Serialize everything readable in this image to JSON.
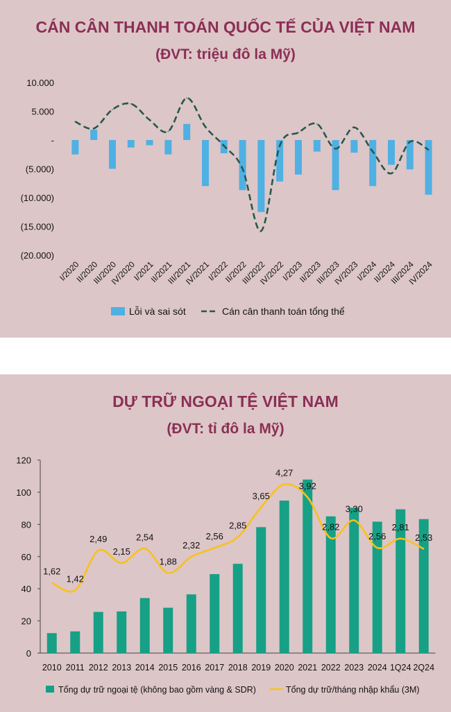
{
  "charts": {
    "bop": {
      "title": "CÁN CÂN THANH TOÁN QUỐC TẾ CỦA VIỆT NAM",
      "subtitle": "(ĐVT: triệu đô la Mỹ)"
    },
    "reserves": {
      "title": "DỰ TRỮ NGOẠI TỆ VIỆT NAM",
      "subtitle": "(ĐVT: tỉ đô la Mỹ)"
    }
  },
  "colors": {
    "panel_bg": "#ddc6c8",
    "title": "#8b2f55",
    "bar_blue": "#4fb0e3",
    "line_dark": "#24594c",
    "bar_green": "#16a085",
    "line_yellow": "#f7c21c"
  },
  "chart_data": [
    {
      "type": "bar",
      "categories": [
        "I/2020",
        "II/2020",
        "III/2020",
        "IV/2020",
        "I/2021",
        "II/2021",
        "III/2021",
        "IV/2021",
        "I/2022",
        "II/2022",
        "III/2022",
        "IV/2022",
        "I/2023",
        "II/2023",
        "III/2023",
        "IV/2023",
        "I/2024",
        "II/2024",
        "III/2024",
        "IV/2024"
      ],
      "ylim": [
        -20000,
        10000
      ],
      "yticks": [
        10000,
        5000,
        0,
        -5000,
        -10000,
        -15000,
        -20000
      ],
      "ytick_labels": [
        "10.000",
        "5.000",
        "-",
        "(5.000)",
        "(10.000)",
        "(15.000)",
        "(20.000)"
      ],
      "series": [
        {
          "name": "Lỗi và sai sót",
          "type": "bar",
          "values": [
            -2500,
            1800,
            -5000,
            -1300,
            -900,
            -2500,
            2800,
            -8000,
            -2300,
            -8700,
            -12500,
            -7200,
            -6000,
            -2000,
            -8700,
            -2200,
            -8000,
            -4300,
            -5100,
            -9500
          ]
        },
        {
          "name": "Cán cân thanh toán tổng thể",
          "type": "line",
          "values": [
            3200,
            2000,
            5300,
            6300,
            3500,
            1500,
            7300,
            2300,
            -1000,
            -5000,
            -15800,
            -1000,
            1300,
            2800,
            -1500,
            2200,
            -2000,
            -5800,
            -300,
            -1700
          ]
        }
      ],
      "legend": "bottom"
    },
    {
      "type": "bar",
      "categories": [
        "2010",
        "2011",
        "2012",
        "2013",
        "2014",
        "2015",
        "2016",
        "2017",
        "2018",
        "2019",
        "2020",
        "2021",
        "2022",
        "2023",
        "2024",
        "1Q24",
        "2Q24"
      ],
      "ylim": [
        0,
        120
      ],
      "yticks": [
        0,
        20,
        40,
        60,
        80,
        100,
        120
      ],
      "series": [
        {
          "name": "Tổng dự trữ ngoại tệ (không bao gồm vàng & SDR)",
          "type": "bar",
          "values": [
            12.4,
            13.5,
            25.6,
            25.9,
            34.2,
            28.2,
            36.5,
            49.1,
            55.5,
            78.3,
            94.8,
            107.9,
            85.0,
            90.4,
            81.7,
            89.4,
            83.3
          ]
        },
        {
          "name": "Tổng dự trữ/tháng nhập khẩu (3M)",
          "type": "line",
          "values": [
            1.62,
            1.42,
            2.49,
            2.15,
            2.54,
            1.88,
            2.32,
            2.56,
            2.85,
            3.65,
            4.27,
            3.92,
            2.82,
            3.3,
            2.56,
            2.81,
            2.53
          ],
          "labels": [
            "1,62",
            "1,42",
            "2,49",
            "2,15",
            "2,54",
            "1,88",
            "2,32",
            "2,56",
            "2,85",
            "3,65",
            "4,27",
            "3,92",
            "2,82",
            "3,30",
            "2,56",
            "2,81",
            "2,53"
          ]
        }
      ],
      "legend": "bottom"
    }
  ]
}
